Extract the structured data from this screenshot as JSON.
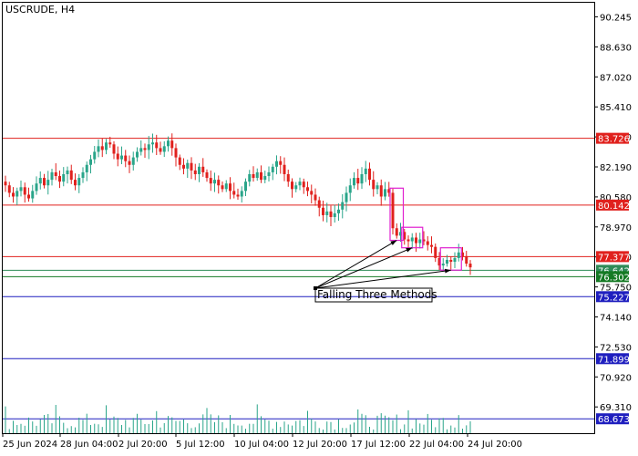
{
  "window": {
    "title": "USCRUDE, H4"
  },
  "chart_data": {
    "type": "candlestick",
    "title": "USCRUDE, H4",
    "symbol": "USCRUDE",
    "timeframe": "H4",
    "price_ticks": [
      "90.245",
      "88.630",
      "87.020",
      "85.410",
      "83.800",
      "82.190",
      "80.580",
      "78.970",
      "77.360",
      "75.750",
      "74.140",
      "72.530",
      "70.920",
      "69.310"
    ],
    "time_ticks": [
      "25 Jun 2024",
      "28 Jun 04:00",
      "2 Jul 20:00",
      "5 Jul 12:00",
      "10 Jul 04:00",
      "12 Jul 20:00",
      "17 Jul 12:00",
      "22 Jul 04:00",
      "24 Jul 20:00"
    ],
    "ylim": [
      67.9,
      91.0
    ],
    "levels": [
      {
        "price": 83.726,
        "label": "83.726",
        "color": "#e0211d"
      },
      {
        "price": 80.142,
        "label": "80.142",
        "color": "#e0211d"
      },
      {
        "price": 77.377,
        "label": "77.377",
        "color": "#e0211d"
      },
      {
        "price": 76.642,
        "label": "76.642",
        "color": "#2e8b57"
      },
      {
        "price": 76.302,
        "label": "76.302",
        "color": "#157a24"
      },
      {
        "price": 75.227,
        "label": "75.227",
        "color": "#1f1fbf"
      },
      {
        "price": 71.899,
        "label": "71.899",
        "color": "#1f1fbf"
      },
      {
        "price": 68.673,
        "label": "68.673",
        "color": "#1f1fbf"
      }
    ],
    "annotation": "Falling Three Methods",
    "closes": [
      81.2,
      80.8,
      80.6,
      80.9,
      81.1,
      80.7,
      80.5,
      80.9,
      81.3,
      81.6,
      81.2,
      81.5,
      81.9,
      81.7,
      81.4,
      81.8,
      82.0,
      81.5,
      81.2,
      81.6,
      81.9,
      82.3,
      82.6,
      83.0,
      83.3,
      83.1,
      83.5,
      83.4,
      82.9,
      82.6,
      82.8,
      82.5,
      82.3,
      82.7,
      83.0,
      83.2,
      83.1,
      83.4,
      83.5,
      83.2,
      83.0,
      83.3,
      83.6,
      83.2,
      82.7,
      82.3,
      82.1,
      82.4,
      82.0,
      81.8,
      82.2,
      81.9,
      81.6,
      81.3,
      81.5,
      81.2,
      81.0,
      81.3,
      80.9,
      80.7,
      80.6,
      80.9,
      81.4,
      81.8,
      81.6,
      81.9,
      81.5,
      81.7,
      81.9,
      82.2,
      82.5,
      82.3,
      81.8,
      81.4,
      81.0,
      81.2,
      81.4,
      81.1,
      80.9,
      80.7,
      80.4,
      80.0,
      79.6,
      79.8,
      79.5,
      79.7,
      79.9,
      80.3,
      80.8,
      81.2,
      81.6,
      81.3,
      81.8,
      82.1,
      81.5,
      81.0,
      81.2,
      80.6,
      81.0,
      80.8,
      78.9,
      78.5,
      78.7,
      78.3,
      78.2,
      78.4,
      78.1,
      78.3,
      78.2,
      78.0,
      77.9,
      77.3,
      76.9,
      77.0,
      77.2,
      77.1,
      77.3,
      77.6,
      77.4,
      77.0,
      76.8
    ]
  }
}
